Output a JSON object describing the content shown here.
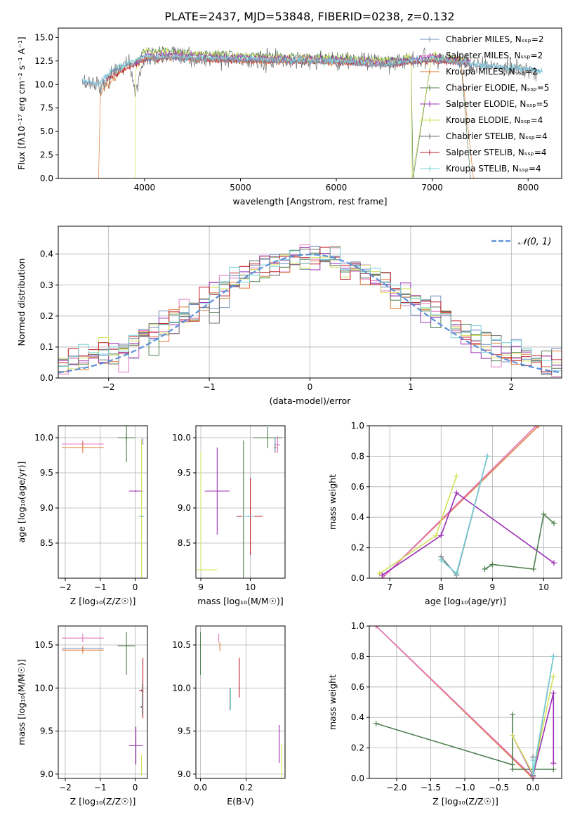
{
  "figure": {
    "title": "PLATE=2437, MJD=53848, FIBERID=0238, z=0.132",
    "colors": {
      "chabrier_miles": "#6c8ebf",
      "salpeter_miles": "#e377c2",
      "kroupa_miles": "#e07b39",
      "chabrier_elodie": "#4f7f4f",
      "salpeter_elodie": "#9b30b6",
      "kroupa_elodie": "#d4e157",
      "chabrier_stelib": "#707070",
      "salpeter_stelib": "#c0202a",
      "kroupa_stelib": "#76d0d8",
      "normal_curve": "#5b8fd9"
    }
  },
  "chart_data": [
    {
      "id": "spectrum",
      "type": "line",
      "title": "PLATE=2437, MJD=53848, FIBERID=0238, z=0.132",
      "xlabel": "wavelength [Angstrom, rest frame]",
      "ylabel": "Flux [fλ10⁻¹⁷ erg cm⁻² s⁻¹ A⁻¹]",
      "xlim": [
        3100,
        8350
      ],
      "ylim": [
        0,
        16
      ],
      "xticks": [
        4000,
        5000,
        6000,
        7000,
        8000
      ],
      "yticks": [
        0.0,
        2.5,
        5.0,
        7.5,
        10.0,
        12.5,
        15.0
      ],
      "grid": false,
      "legend_position": "right",
      "legend": [
        {
          "label": "Chabrier MILES, Nₛₛₚ=2",
          "color": "#6c8ebf"
        },
        {
          "label": "Salpeter MILES, Nₛₛₚ=2",
          "color": "#e377c2"
        },
        {
          "label": "Kroupa MILES, Nₛₛₚ=2",
          "color": "#e07b39"
        },
        {
          "label": "Chabrier ELODIE, Nₛₛₚ=5",
          "color": "#4f7f4f"
        },
        {
          "label": "Salpeter ELODIE, Nₛₛₚ=5",
          "color": "#9b30b6"
        },
        {
          "label": "Kroupa ELODIE, Nₛₛₚ=4",
          "color": "#d4e157"
        },
        {
          "label": "Chabrier STELIB, Nₛₛₚ=4",
          "color": "#707070"
        },
        {
          "label": "Salpeter STELIB, Nₛₛₚ=4",
          "color": "#c0202a"
        },
        {
          "label": "Kroupa STELIB, Nₛₛₚ=4",
          "color": "#76d0d8"
        }
      ],
      "series": [
        {
          "color": "#707070",
          "noise": 1.4,
          "x": [
            3350,
            3500,
            3550,
            3700,
            3850,
            3900,
            4000,
            4200,
            4500,
            5000,
            5500,
            6000,
            6500,
            6800,
            7000,
            7200,
            7300,
            7500,
            7700,
            7900,
            8100
          ],
          "y": [
            10.2,
            10.2,
            9.8,
            11.5,
            12.3,
            9.0,
            12.8,
            12.9,
            12.7,
            12.6,
            12.5,
            12.6,
            12.3,
            12.7,
            12.8,
            12.6,
            12.5,
            12.0,
            11.7,
            11.5,
            11.3
          ]
        },
        {
          "color": "#4f7f4f",
          "noise": 0.6,
          "x": [
            3900,
            4000,
            4200,
            4500,
            5000,
            5500,
            6000,
            6500,
            6780,
            6800,
            7000,
            7300,
            7400
          ],
          "y": [
            12.3,
            13.6,
            13.7,
            13.3,
            13.2,
            13.0,
            12.9,
            12.6,
            12.8,
            0.0,
            13.1,
            12.5,
            0.0
          ]
        },
        {
          "color": "#e07b39",
          "noise": 0.5,
          "x": [
            3520,
            3540,
            3600,
            3800,
            4000,
            4300,
            5000,
            5500,
            6000,
            6500,
            6800,
            7000,
            7300,
            7430
          ],
          "y": [
            0.0,
            9.0,
            9.8,
            11.8,
            12.7,
            12.8,
            12.5,
            12.4,
            12.3,
            12.1,
            12.4,
            12.6,
            12.4,
            0.0
          ]
        },
        {
          "color": "#d4e157",
          "noise": 0.6,
          "x": [
            3900,
            3910,
            4000,
            4300,
            5000,
            5500,
            6000,
            6500,
            6780,
            6790,
            7000,
            7400
          ],
          "y": [
            0.0,
            11.5,
            13.5,
            13.4,
            13.1,
            12.9,
            12.8,
            12.5,
            12.9,
            0.0,
            13.2,
            12.5
          ]
        },
        {
          "color": "#9b30b6",
          "noise": 0.5,
          "x": [
            3900,
            4000,
            4300,
            5000,
            5500,
            6000,
            6500,
            6780,
            7000,
            7400
          ],
          "y": [
            12.0,
            13.2,
            13.2,
            12.9,
            12.8,
            12.7,
            12.4,
            12.7,
            13.0,
            12.4
          ]
        },
        {
          "color": "#c0202a",
          "noise": 0.4,
          "x": [
            3600,
            4000,
            4300,
            5000,
            5500,
            6000,
            6500,
            7000,
            7400
          ],
          "y": [
            10.5,
            12.6,
            12.8,
            12.5,
            12.4,
            12.3,
            12.0,
            12.5,
            12.2
          ]
        },
        {
          "color": "#6c8ebf",
          "noise": 0.4,
          "x": [
            3350,
            3500,
            3700,
            4000,
            4300,
            5000,
            5500,
            6000,
            6500,
            7000,
            7500,
            8000,
            8150
          ],
          "y": [
            10.3,
            10.0,
            11.6,
            12.6,
            12.8,
            12.5,
            12.4,
            12.3,
            12.0,
            12.6,
            12.0,
            11.6,
            11.4
          ]
        },
        {
          "color": "#76d0d8",
          "noise": 0.5,
          "x": [
            3350,
            3500,
            3700,
            4000,
            4300,
            5000,
            5500,
            6000,
            6500,
            7000,
            7500,
            8000,
            8150
          ],
          "y": [
            10.5,
            10.1,
            11.8,
            13.0,
            13.0,
            12.7,
            12.6,
            12.5,
            12.2,
            12.8,
            12.1,
            11.6,
            11.3
          ]
        }
      ]
    },
    {
      "id": "residuals",
      "type": "step",
      "xlabel": "(data-model)/error",
      "ylabel": "Normed distribution",
      "xlim": [
        -2.5,
        2.5
      ],
      "ylim": [
        0,
        0.49
      ],
      "xticks": [
        -2,
        -1,
        0,
        1,
        2
      ],
      "yticks": [
        0.0,
        0.1,
        0.2,
        0.3,
        0.4
      ],
      "grid": true,
      "legend_position": "top-right",
      "legend": [
        {
          "label": "𝒩(0, 1)",
          "color": "#5b8fd9",
          "dash": "8,4"
        }
      ],
      "normal": {
        "mu": 0,
        "sigma": 1
      },
      "bin_width": 0.1,
      "series_colors": [
        "#6c8ebf",
        "#e377c2",
        "#e07b39",
        "#4f7f4f",
        "#9b30b6",
        "#d4e157",
        "#707070",
        "#c0202a",
        "#76d0d8"
      ]
    },
    {
      "id": "age-vs-Z",
      "type": "errorbar",
      "xlabel": "Z [log₁₀(Z/Z☉)]",
      "ylabel": "age  [log₁₀(age/yr)]",
      "xlim": [
        -2.2,
        0.35
      ],
      "ylim": [
        8.0,
        10.17
      ],
      "xticks": [
        -2,
        -1,
        0
      ],
      "yticks": [
        8.5,
        9.0,
        9.5,
        10.0
      ],
      "grid": true,
      "points": [
        {
          "x": -1.5,
          "y": 9.91,
          "xerr": 0.6,
          "yerr": 0.05,
          "color": "#e377c2"
        },
        {
          "x": -1.5,
          "y": 9.86,
          "xerr": 0.6,
          "yerr": 0.08,
          "color": "#e07b39"
        },
        {
          "x": -0.25,
          "y": 10.0,
          "xerr": 0.25,
          "yerr": 0.07,
          "color": "#4f7f4f"
        },
        {
          "x": -0.25,
          "y": 10.0,
          "xerr": 0.05,
          "yerr": 0.35,
          "color": "#4f7f4f"
        },
        {
          "x": 0.02,
          "y": 9.24,
          "xerr": 0.2,
          "yerr": 0.01,
          "color": "#9b30b6"
        },
        {
          "x": 0.22,
          "y": 9.95,
          "xerr": 0.01,
          "yerr": 0.05,
          "color": "#6c8ebf"
        },
        {
          "x": 0.18,
          "y": 8.88,
          "xerr": 0.08,
          "yerr": 1.1,
          "color": "#d4e157"
        },
        {
          "x": 0.18,
          "y": 8.88,
          "xerr": 0.06,
          "yerr": 0.01,
          "color": "#707070"
        },
        {
          "x": 0.18,
          "y": 8.88,
          "xerr": 0.04,
          "yerr": 0.01,
          "color": "#76d0d8"
        }
      ]
    },
    {
      "id": "age-vs-mass",
      "type": "errorbar",
      "xlabel": "mass [log₁₀(M/M☉)]",
      "ylabel": "",
      "xlim": [
        8.9,
        10.7
      ],
      "ylim": [
        8.0,
        10.17
      ],
      "xticks": [
        9,
        10
      ],
      "yticks": [
        8.5,
        9.0,
        9.5,
        10.0
      ],
      "grid": true,
      "points": [
        {
          "x": 9.0,
          "y": 8.95,
          "xerr": 0.01,
          "yerr": 0.85,
          "color": "#d4e157"
        },
        {
          "x": 9.0,
          "y": 8.12,
          "xerr": 0.33,
          "yerr": 0.01,
          "color": "#d4e157"
        },
        {
          "x": 9.33,
          "y": 9.24,
          "xerr": 0.25,
          "yerr": 0.62,
          "color": "#9b30b6"
        },
        {
          "x": 9.86,
          "y": 8.88,
          "xerr": 0.15,
          "yerr": 1.08,
          "color": "#4f7f4f"
        },
        {
          "x": 9.96,
          "y": 8.88,
          "xerr": 0.1,
          "yerr": 0.01,
          "color": "#707070"
        },
        {
          "x": 10.0,
          "y": 8.88,
          "xerr": 0.25,
          "yerr": 0.55,
          "color": "#c0202a"
        },
        {
          "x": 9.96,
          "y": 8.88,
          "xerr": 0.12,
          "yerr": 0.01,
          "color": "#76d0d8"
        },
        {
          "x": 10.35,
          "y": 10.0,
          "xerr": 0.3,
          "yerr": 0.15,
          "color": "#4f7f4f"
        },
        {
          "x": 10.55,
          "y": 9.9,
          "xerr": 0.05,
          "yerr": 0.12,
          "color": "#e377c2"
        },
        {
          "x": 10.5,
          "y": 9.86,
          "xerr": 0.03,
          "yerr": 0.08,
          "color": "#e07b39"
        },
        {
          "x": 10.5,
          "y": 9.9,
          "xerr": 0.02,
          "yerr": 0.1,
          "color": "#6c8ebf"
        }
      ]
    },
    {
      "id": "massweight-vs-age",
      "type": "line",
      "xlabel": "age  [log₁₀(age/yr)]",
      "ylabel": "mass weight",
      "xlim": [
        6.6,
        10.35
      ],
      "ylim": [
        0.0,
        1.0
      ],
      "xticks": [
        7,
        8,
        9,
        10
      ],
      "yticks": [
        0.0,
        0.2,
        0.4,
        0.6,
        0.8,
        1.0
      ],
      "grid": true,
      "series": [
        {
          "color": "#e07b39",
          "x": [
            6.85,
            9.9
          ],
          "y": [
            0.0,
            1.0
          ]
        },
        {
          "color": "#e377c2",
          "x": [
            6.85,
            9.85
          ],
          "y": [
            0.0,
            1.0
          ]
        },
        {
          "color": "#d4e157",
          "x": [
            6.8,
            7.9,
            8.3
          ],
          "y": [
            0.03,
            0.28,
            0.67
          ]
        },
        {
          "color": "#9b30b6",
          "x": [
            6.85,
            8.0,
            8.3,
            10.2
          ],
          "y": [
            0.02,
            0.28,
            0.56,
            0.1
          ]
        },
        {
          "color": "#707070",
          "x": [
            8.0,
            8.3,
            8.9
          ],
          "y": [
            0.14,
            0.02,
            0.8
          ]
        },
        {
          "color": "#76d0d8",
          "x": [
            8.0,
            8.3,
            8.9
          ],
          "y": [
            0.12,
            0.03,
            0.8
          ]
        },
        {
          "color": "#4f7f4f",
          "x": [
            8.85,
            9.0,
            9.8,
            10.0,
            10.2
          ],
          "y": [
            0.06,
            0.09,
            0.06,
            0.42,
            0.36
          ]
        }
      ]
    },
    {
      "id": "mass-vs-Z",
      "type": "errorbar",
      "xlabel": "Z [log₁₀(Z/Z☉)]",
      "ylabel": "mass [log₁₀(M/M☉)]",
      "xlim": [
        -2.2,
        0.35
      ],
      "ylim": [
        8.95,
        10.72
      ],
      "xticks": [
        -2,
        -1,
        0
      ],
      "yticks": [
        9.0,
        9.5,
        10.0,
        10.5
      ],
      "grid": true,
      "points": [
        {
          "x": -1.5,
          "y": 10.58,
          "xerr": 0.6,
          "yerr": 0.05,
          "color": "#e377c2"
        },
        {
          "x": -1.5,
          "y": 10.46,
          "xerr": 0.6,
          "yerr": 0.02,
          "color": "#6c8ebf"
        },
        {
          "x": -1.5,
          "y": 10.44,
          "xerr": 0.6,
          "yerr": 0.04,
          "color": "#e07b39"
        },
        {
          "x": -0.25,
          "y": 10.49,
          "xerr": 0.25,
          "yerr": 0.01,
          "color": "#4f7f4f"
        },
        {
          "x": -0.25,
          "y": 10.4,
          "xerr": 0.01,
          "yerr": 0.25,
          "color": "#4f7f4f"
        },
        {
          "x": 0.02,
          "y": 9.33,
          "xerr": 0.2,
          "yerr": 0.22,
          "color": "#9b30b6"
        },
        {
          "x": 0.18,
          "y": 9.97,
          "xerr": 0.06,
          "yerr": 0.01,
          "color": "#c0202a"
        },
        {
          "x": 0.22,
          "y": 10.0,
          "xerr": 0.01,
          "yerr": 0.35,
          "color": "#c0202a"
        },
        {
          "x": 0.18,
          "y": 9.78,
          "xerr": 0.04,
          "yerr": 0.01,
          "color": "#707070"
        },
        {
          "x": 0.2,
          "y": 9.87,
          "xerr": 0.02,
          "yerr": 0.18,
          "color": "#76d0d8"
        },
        {
          "x": 0.18,
          "y": 9.1,
          "xerr": 0.01,
          "yerr": 0.12,
          "color": "#d4e157"
        }
      ]
    },
    {
      "id": "mass-vs-EBV",
      "type": "errorbar",
      "xlabel": "E(B-V)",
      "ylabel": "",
      "xlim": [
        -0.02,
        0.37
      ],
      "ylim": [
        8.95,
        10.72
      ],
      "xticks": [
        0.0,
        0.2
      ],
      "yticks": [
        9.0,
        9.5,
        10.0,
        10.5
      ],
      "grid": true,
      "points": [
        {
          "x": 0.0,
          "y": 10.4,
          "xerr": 0.001,
          "yerr": 0.25,
          "color": "#4f7f4f"
        },
        {
          "x": 0.08,
          "y": 10.58,
          "xerr": 0.001,
          "yerr": 0.05,
          "color": "#e377c2"
        },
        {
          "x": 0.085,
          "y": 10.48,
          "xerr": 0.001,
          "yerr": 0.05,
          "color": "#e07b39"
        },
        {
          "x": 0.13,
          "y": 9.87,
          "xerr": 0.001,
          "yerr": 0.13,
          "color": "#707070"
        },
        {
          "x": 0.132,
          "y": 9.87,
          "xerr": 0.001,
          "yerr": 0.13,
          "color": "#76d0d8"
        },
        {
          "x": 0.17,
          "y": 10.12,
          "xerr": 0.001,
          "yerr": 0.23,
          "color": "#c0202a"
        },
        {
          "x": 0.345,
          "y": 9.35,
          "xerr": 0.001,
          "yerr": 0.22,
          "color": "#9b30b6"
        },
        {
          "x": 0.355,
          "y": 9.15,
          "xerr": 0.001,
          "yerr": 0.2,
          "color": "#d4e157"
        }
      ]
    },
    {
      "id": "massweight-vs-Z",
      "type": "line",
      "xlabel": "Z [log₁₀(Z/Z☉)]",
      "ylabel": "mass weight",
      "xlim": [
        -2.4,
        0.42
      ],
      "ylim": [
        0.0,
        1.0
      ],
      "xticks": [
        -2.0,
        -1.5,
        -1.0,
        -0.5,
        0.0
      ],
      "yticks": [
        0.0,
        0.2,
        0.4,
        0.6,
        0.8,
        1.0
      ],
      "grid": true,
      "series": [
        {
          "color": "#e07b39",
          "x": [
            -2.3,
            0.0
          ],
          "y": [
            1.0,
            0.0
          ]
        },
        {
          "color": "#e377c2",
          "x": [
            -2.3,
            0.0
          ],
          "y": [
            1.0,
            0.01
          ]
        },
        {
          "color": "#4f7f4f",
          "x": [
            -2.3,
            -0.3,
            -0.3,
            -0.3,
            0.0,
            0.3
          ],
          "y": [
            0.36,
            0.09,
            0.42,
            0.06,
            0.06,
            0.06
          ]
        },
        {
          "color": "#9b30b6",
          "x": [
            -0.3,
            0.0,
            0.3,
            0.3
          ],
          "y": [
            0.28,
            0.02,
            0.56,
            0.1
          ]
        },
        {
          "color": "#d4e157",
          "x": [
            -0.3,
            0.0,
            0.3
          ],
          "y": [
            0.28,
            0.03,
            0.67
          ]
        },
        {
          "color": "#707070",
          "x": [
            0.0,
            0.0,
            0.3
          ],
          "y": [
            0.14,
            0.02,
            0.8
          ]
        },
        {
          "color": "#76d0d8",
          "x": [
            0.0,
            0.0,
            0.3
          ],
          "y": [
            0.12,
            0.03,
            0.8
          ]
        }
      ]
    }
  ]
}
